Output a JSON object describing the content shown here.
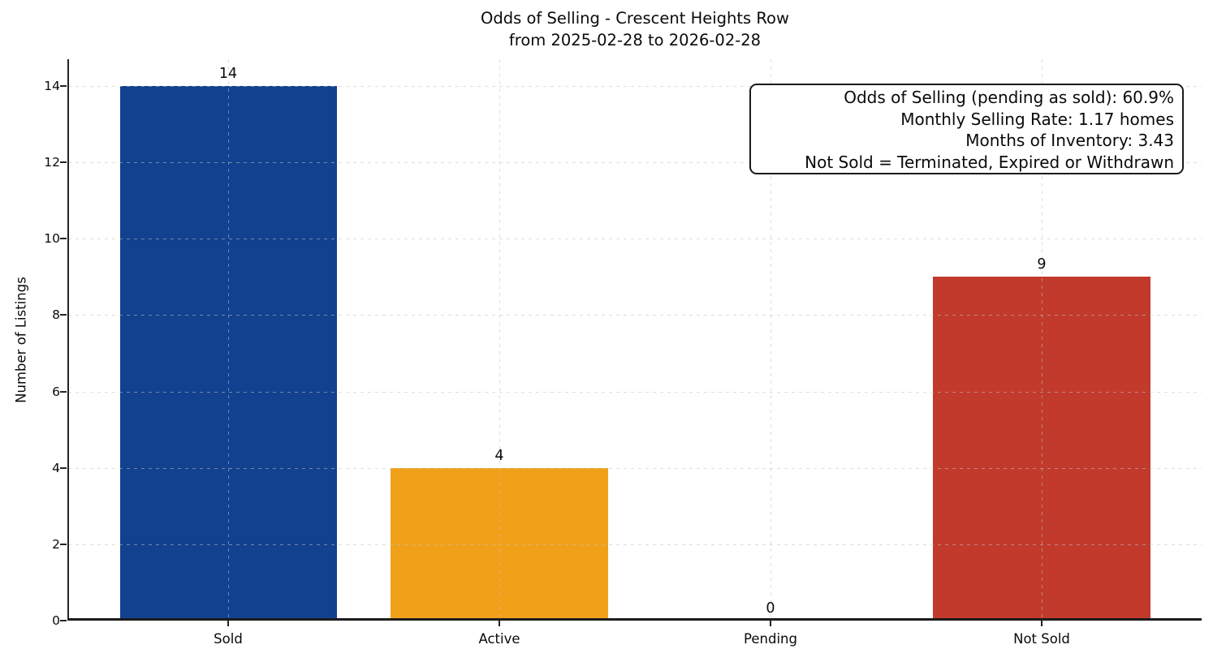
{
  "title": "Odds of Selling - Crescent Heights Row",
  "subtitle": "from 2025-02-28 to 2026-02-28",
  "y_axis_label": "Number of Listings",
  "annotation": {
    "lines": [
      "Odds of Selling (pending as sold): 60.9%",
      "Monthly Selling Rate: 1.17 homes",
      "Months of Inventory: 3.43",
      "Not Sold = Terminated, Expired or Withdrawn"
    ]
  },
  "chart_data": {
    "type": "bar",
    "title": "Odds of Selling - Crescent Heights Row\nfrom 2025-02-28 to 2026-02-28",
    "categories": [
      "Sold",
      "Active",
      "Pending",
      "Not Sold"
    ],
    "values": [
      14,
      4,
      0,
      9
    ],
    "value_labels": [
      "14",
      "4",
      "0",
      "9"
    ],
    "bar_colors": [
      "#11418f",
      "#f1a019",
      null,
      "#c13a2c"
    ],
    "xlabel": "",
    "ylabel": "Number of Listings",
    "yticks": [
      0,
      2,
      4,
      6,
      8,
      10,
      12,
      14
    ],
    "ylim": [
      0,
      14.7
    ],
    "grid": {
      "style": "dashed",
      "axes": "both",
      "above_bars": true
    },
    "legend": null,
    "annotations": [
      "Odds of Selling (pending as sold): 60.9%",
      "Monthly Selling Rate: 1.17 homes",
      "Months of Inventory: 3.43",
      "Not Sold = Terminated, Expired or Withdrawn"
    ]
  }
}
